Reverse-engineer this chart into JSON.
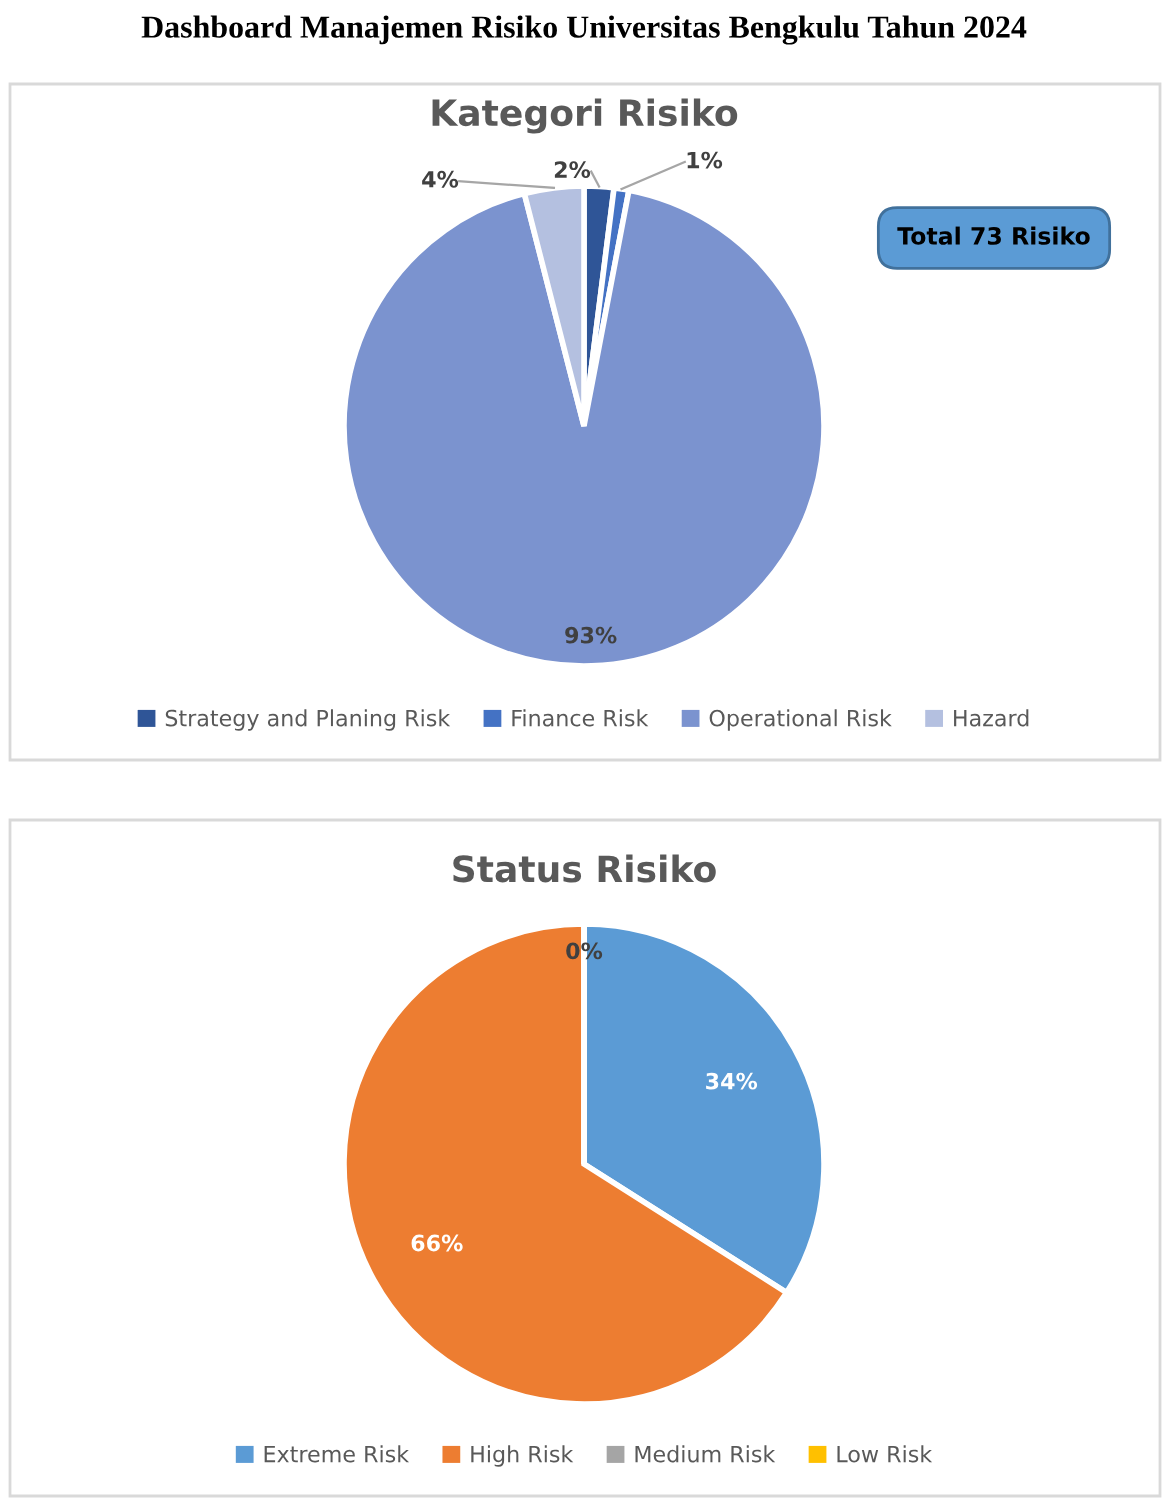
{
  "chart_data": [
    {
      "type": "pie",
      "title": "Kategori Risiko",
      "categories": [
        "Strategy and Planing Risk",
        "Finance Risk",
        "Operational Risk",
        "Hazard"
      ],
      "values": [
        2,
        1,
        93,
        4
      ],
      "colors": [
        "#2f5597",
        "#4472c4",
        "#7b93cf",
        "#b4c0e0"
      ],
      "value_labels": [
        "2%",
        "1%",
        "93%",
        "4%"
      ],
      "legend": "bottom",
      "annotations": [
        "Dashboard Manajemen Risiko Universitas Bengkulu Tahun 2024",
        "Total 73 Risiko"
      ]
    },
    {
      "type": "pie",
      "title": "Status Risiko",
      "categories": [
        "Extreme Risk",
        "High Risk",
        "Medium Risk",
        "Low Risk"
      ],
      "values": [
        34,
        66,
        0,
        0
      ],
      "colors": [
        "#5b9bd5",
        "#ed7d31",
        "#a5a5a5",
        "#ffc000"
      ],
      "value_labels": [
        "34%",
        "66%",
        "0%",
        null
      ],
      "legend": "bottom"
    }
  ]
}
